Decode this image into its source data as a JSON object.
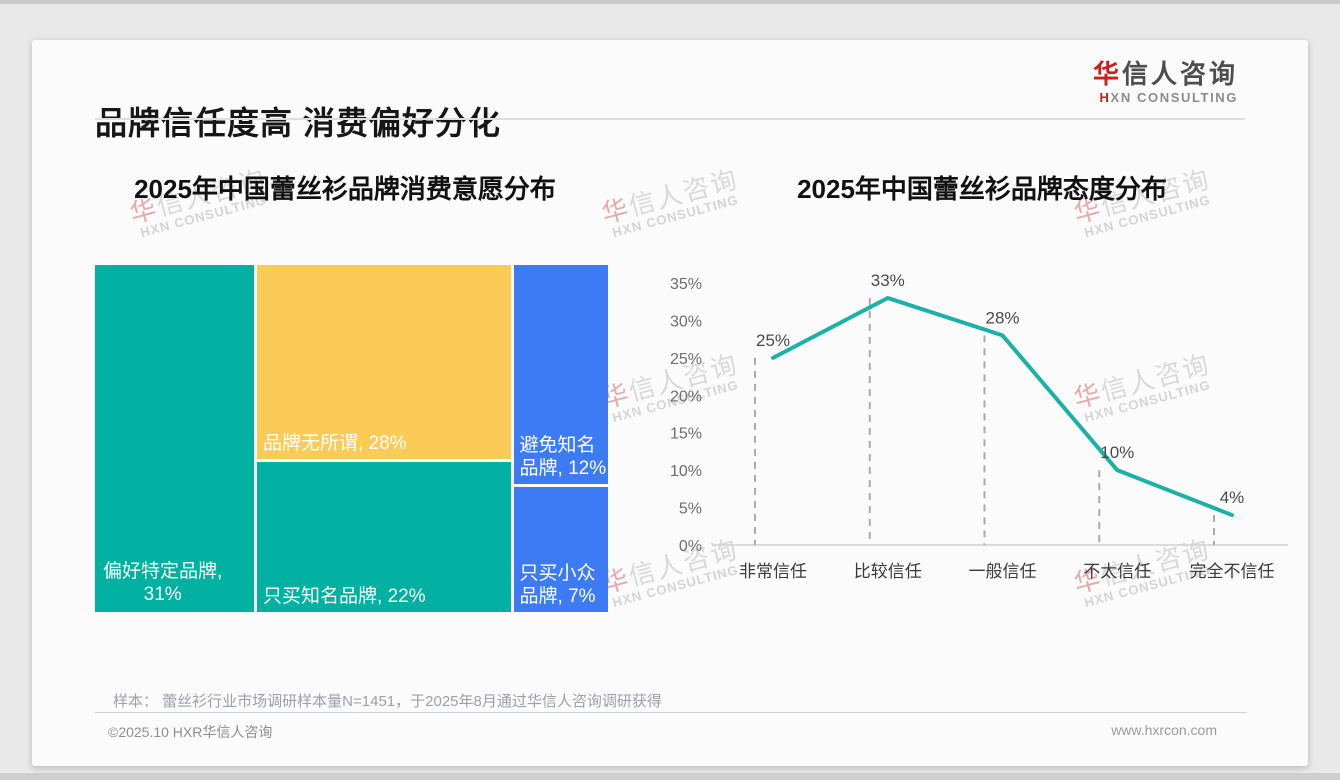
{
  "page": {
    "title": "品牌信任度高 消费偏好分化",
    "logo": {
      "cn_accent": "华",
      "cn_rest": "信人咨询",
      "en_accent": "H",
      "en_rest": "XN CONSULTING"
    },
    "watermark": {
      "cn_accent": "华",
      "cn_rest": "信人咨询",
      "en": "HXN CONSULTING"
    },
    "footnote": "样本： 蕾丝衫行业市场调研样本量N=1451，于2025年8月通过华信人咨询调研获得",
    "footer_left": "©2025.10 HXR华信人咨询",
    "footer_right": "www.hxrcon.com"
  },
  "colors": {
    "brand_red": "#c5221c",
    "teal": "#00b0a1",
    "yellow": "#fbcb58",
    "blue": "#3d7bf5",
    "line_teal": "#1bb1a5"
  },
  "chart_data": [
    {
      "type": "treemap",
      "title": "2025年中国蕾丝衫品牌消费意愿分布",
      "items": [
        {
          "name": "偏好特定品牌",
          "value": 31,
          "color": "#00b0a1"
        },
        {
          "name": "品牌无所谓",
          "value": 28,
          "color": "#fbcb58"
        },
        {
          "name": "只买知名品牌",
          "value": 22,
          "color": "#00b0a1"
        },
        {
          "name": "避免知名品牌",
          "value": 12,
          "color": "#3d7bf5"
        },
        {
          "name": "只买小众品牌",
          "value": 7,
          "color": "#3d7bf5"
        }
      ],
      "layout": {
        "columns": [
          {
            "share": 31,
            "blocks": [
              0
            ]
          },
          {
            "share": 50,
            "blocks": [
              1,
              2
            ]
          },
          {
            "share": 19,
            "blocks": [
              3,
              4
            ]
          }
        ],
        "label_lines": [
          [
            "偏好特定品牌,",
            "31%"
          ],
          [
            "品牌无所谓, 28%"
          ],
          [
            "只买知名品牌, 22%"
          ],
          [
            "避免知名",
            "品牌, 12%"
          ],
          [
            "只买小众",
            "品牌, 7%"
          ]
        ]
      }
    },
    {
      "type": "line",
      "title": "2025年中国蕾丝衫品牌态度分布",
      "categories": [
        "非常信任",
        "比较信任",
        "一般信任",
        "不太信任",
        "完全不信任"
      ],
      "values": [
        25,
        33,
        28,
        10,
        4
      ],
      "point_labels": [
        "25%",
        "33%",
        "28%",
        "10%",
        "4%"
      ],
      "ylim": [
        0,
        35
      ],
      "ytick_step": 5,
      "ytick_suffix": "%",
      "xlabel": "",
      "ylabel": "",
      "grid": "dashed vertical droplines",
      "legend": "none",
      "line_color": "#1bb1a5"
    }
  ]
}
